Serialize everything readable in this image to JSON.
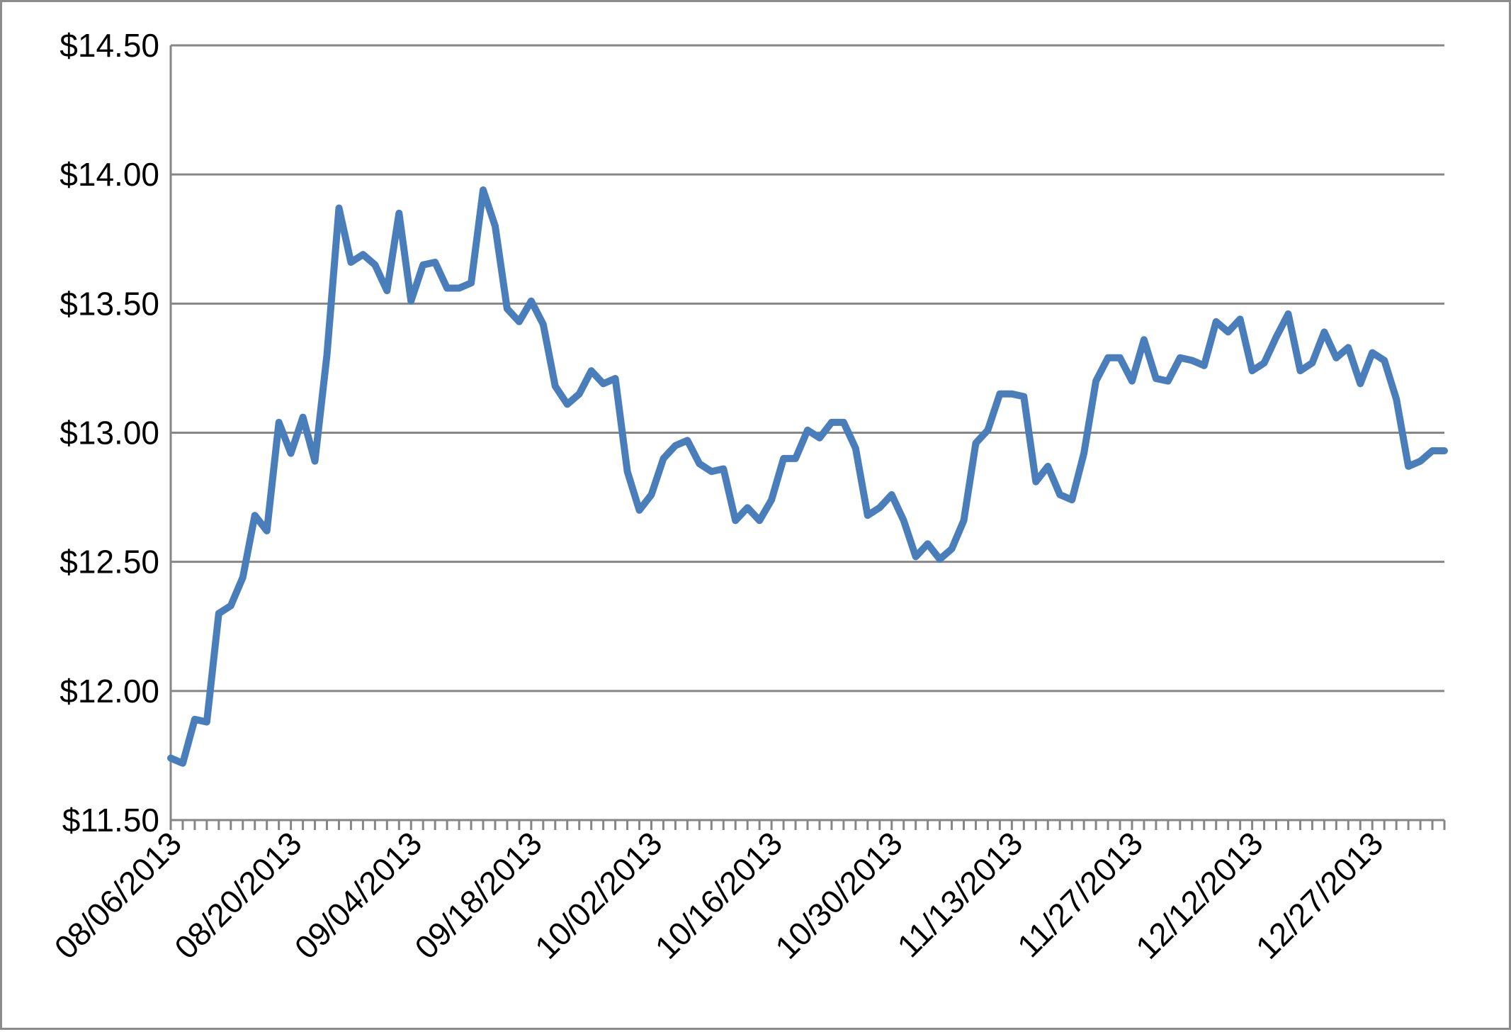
{
  "chart_data": {
    "type": "line",
    "title": "",
    "xlabel": "",
    "ylabel": "",
    "ylim": [
      11.5,
      14.5
    ],
    "y_ticks": [
      11.5,
      12.0,
      12.5,
      13.0,
      13.5,
      14.0,
      14.5
    ],
    "y_tick_labels": [
      "$11.50",
      "$12.00",
      "$12.50",
      "$13.00",
      "$13.50",
      "$14.00",
      "$14.50"
    ],
    "x_tick_labels": [
      "08/06/2013",
      "08/20/2013",
      "09/04/2013",
      "09/18/2013",
      "10/02/2013",
      "10/16/2013",
      "10/30/2013",
      "11/13/2013",
      "11/27/2013",
      "12/12/2013",
      "12/27/2013"
    ],
    "x_tick_label_positions": [
      0,
      10,
      20,
      30,
      40,
      50,
      60,
      70,
      80,
      90,
      100
    ],
    "num_points": 107,
    "grid": "horizontal",
    "legend": "none",
    "colors": {
      "line": "#4a7ebb",
      "grid": "#868686",
      "axis": "#868686",
      "frame": "#8c8c8c"
    },
    "series": [
      {
        "values": [
          11.74,
          11.72,
          11.89,
          11.88,
          12.3,
          12.33,
          12.44,
          12.68,
          12.62,
          13.04,
          12.92,
          13.06,
          12.89,
          13.3,
          13.87,
          13.66,
          13.69,
          13.65,
          13.55,
          13.85,
          13.51,
          13.65,
          13.66,
          13.56,
          13.56,
          13.58,
          13.94,
          13.8,
          13.48,
          13.43,
          13.51,
          13.42,
          13.18,
          13.11,
          13.15,
          13.24,
          13.19,
          13.21,
          12.85,
          12.7,
          12.76,
          12.9,
          12.95,
          12.97,
          12.88,
          12.85,
          12.86,
          12.66,
          12.71,
          12.66,
          12.74,
          12.9,
          12.9,
          13.01,
          12.98,
          13.04,
          13.04,
          12.94,
          12.68,
          12.71,
          12.76,
          12.66,
          12.52,
          12.57,
          12.51,
          12.55,
          12.66,
          12.96,
          13.01,
          13.15,
          13.15,
          13.14,
          12.81,
          12.87,
          12.76,
          12.74,
          12.92,
          13.2,
          13.29,
          13.29,
          13.2,
          13.36,
          13.21,
          13.2,
          13.29,
          13.28,
          13.26,
          13.43,
          13.39,
          13.44,
          13.24,
          13.27,
          13.37,
          13.46,
          13.24,
          13.27,
          13.39,
          13.29,
          13.33,
          13.19,
          13.31,
          13.28,
          13.13,
          12.87,
          12.89,
          12.93,
          12.93
        ]
      }
    ]
  }
}
